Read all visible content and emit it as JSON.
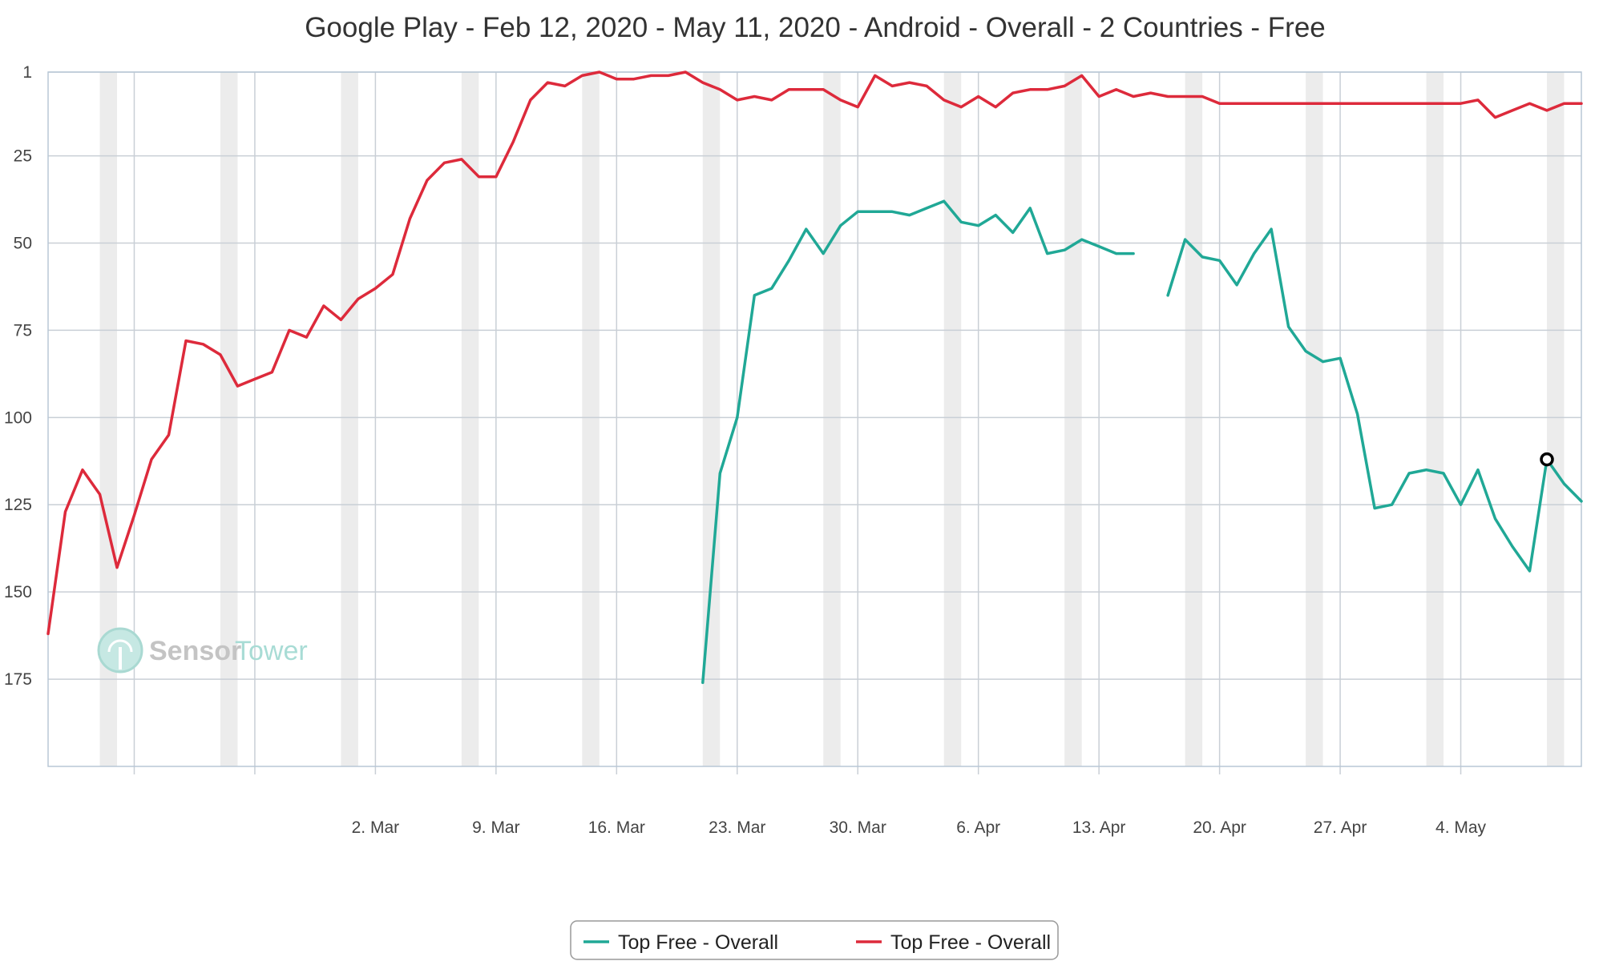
{
  "chart_data": {
    "type": "line",
    "title": "Google Play - Feb 12, 2020 - May 11, 2020 - Android - Overall - 2 Countries - Free",
    "x_start": "2020-02-12",
    "x_end": "2020-05-11",
    "y_axis": {
      "inverted": true,
      "range": [
        1,
        200
      ],
      "ticks": [
        1,
        25,
        50,
        75,
        100,
        125,
        150,
        175
      ]
    },
    "x_ticks": [
      {
        "date": "2020-03-02",
        "label": "2. Mar"
      },
      {
        "date": "2020-03-09",
        "label": "9. Mar"
      },
      {
        "date": "2020-03-16",
        "label": "16. Mar"
      },
      {
        "date": "2020-03-23",
        "label": "23. Mar"
      },
      {
        "date": "2020-03-30",
        "label": "30. Mar"
      },
      {
        "date": "2020-04-06",
        "label": "6. Apr"
      },
      {
        "date": "2020-04-13",
        "label": "13. Apr"
      },
      {
        "date": "2020-04-20",
        "label": "20. Apr"
      },
      {
        "date": "2020-04-27",
        "label": "27. Apr"
      },
      {
        "date": "2020-05-04",
        "label": "4. May"
      }
    ],
    "weekend_bands": [
      [
        "2020-02-15",
        "2020-02-16"
      ],
      [
        "2020-02-22",
        "2020-02-23"
      ],
      [
        "2020-02-29",
        "2020-03-01"
      ],
      [
        "2020-03-07",
        "2020-03-08"
      ],
      [
        "2020-03-14",
        "2020-03-15"
      ],
      [
        "2020-03-21",
        "2020-03-22"
      ],
      [
        "2020-03-28",
        "2020-03-29"
      ],
      [
        "2020-04-04",
        "2020-04-05"
      ],
      [
        "2020-04-11",
        "2020-04-12"
      ],
      [
        "2020-04-18",
        "2020-04-19"
      ],
      [
        "2020-04-25",
        "2020-04-26"
      ],
      [
        "2020-05-02",
        "2020-05-03"
      ],
      [
        "2020-05-09",
        "2020-05-10"
      ]
    ],
    "grid": true,
    "legend": "bottom-center",
    "series": [
      {
        "name": "Top Free - Overall",
        "color": "#20a896",
        "points": [
          [
            "2020-03-21",
            176
          ],
          [
            "2020-03-22",
            116
          ],
          [
            "2020-03-23",
            100
          ],
          [
            "2020-03-24",
            65
          ],
          [
            "2020-03-25",
            63
          ],
          [
            "2020-03-26",
            55
          ],
          [
            "2020-03-27",
            46
          ],
          [
            "2020-03-28",
            53
          ],
          [
            "2020-03-29",
            45
          ],
          [
            "2020-03-30",
            41
          ],
          [
            "2020-03-31",
            41
          ],
          [
            "2020-04-01",
            41
          ],
          [
            "2020-04-02",
            42
          ],
          [
            "2020-04-03",
            40
          ],
          [
            "2020-04-04",
            38
          ],
          [
            "2020-04-05",
            44
          ],
          [
            "2020-04-06",
            45
          ],
          [
            "2020-04-07",
            42
          ],
          [
            "2020-04-08",
            47
          ],
          [
            "2020-04-09",
            40
          ],
          [
            "2020-04-10",
            53
          ],
          [
            "2020-04-11",
            52
          ],
          [
            "2020-04-12",
            49
          ],
          [
            "2020-04-13",
            51
          ],
          [
            "2020-04-14",
            53
          ],
          [
            "2020-04-15",
            53
          ],
          [
            "2020-04-16",
            null
          ],
          [
            "2020-04-17",
            65
          ],
          [
            "2020-04-18",
            49
          ],
          [
            "2020-04-19",
            54
          ],
          [
            "2020-04-20",
            55
          ],
          [
            "2020-04-21",
            62
          ],
          [
            "2020-04-22",
            53
          ],
          [
            "2020-04-23",
            46
          ],
          [
            "2020-04-24",
            74
          ],
          [
            "2020-04-25",
            81
          ],
          [
            "2020-04-26",
            84
          ],
          [
            "2020-04-27",
            83
          ],
          [
            "2020-04-28",
            99
          ],
          [
            "2020-04-29",
            126
          ],
          [
            "2020-04-30",
            125
          ],
          [
            "2020-05-01",
            116
          ],
          [
            "2020-05-02",
            115
          ],
          [
            "2020-05-03",
            116
          ],
          [
            "2020-05-04",
            125
          ],
          [
            "2020-05-05",
            115
          ],
          [
            "2020-05-06",
            129
          ],
          [
            "2020-05-07",
            137
          ],
          [
            "2020-05-08",
            144
          ],
          [
            "2020-05-09",
            112
          ],
          [
            "2020-05-10",
            119
          ],
          [
            "2020-05-11",
            124
          ]
        ]
      },
      {
        "name": "Top Free - Overall",
        "color": "#dd2a3b",
        "points": [
          [
            "2020-02-12",
            162
          ],
          [
            "2020-02-13",
            127
          ],
          [
            "2020-02-14",
            115
          ],
          [
            "2020-02-15",
            122
          ],
          [
            "2020-02-16",
            143
          ],
          [
            "2020-02-17",
            128
          ],
          [
            "2020-02-18",
            112
          ],
          [
            "2020-02-19",
            105
          ],
          [
            "2020-02-20",
            78
          ],
          [
            "2020-02-21",
            79
          ],
          [
            "2020-02-22",
            82
          ],
          [
            "2020-02-23",
            91
          ],
          [
            "2020-02-24",
            89
          ],
          [
            "2020-02-25",
            87
          ],
          [
            "2020-02-26",
            75
          ],
          [
            "2020-02-27",
            77
          ],
          [
            "2020-02-28",
            68
          ],
          [
            "2020-02-29",
            72
          ],
          [
            "2020-03-01",
            66
          ],
          [
            "2020-03-02",
            63
          ],
          [
            "2020-03-03",
            59
          ],
          [
            "2020-03-04",
            43
          ],
          [
            "2020-03-05",
            32
          ],
          [
            "2020-03-06",
            27
          ],
          [
            "2020-03-07",
            26
          ],
          [
            "2020-03-08",
            31
          ],
          [
            "2020-03-09",
            31
          ],
          [
            "2020-03-10",
            21
          ],
          [
            "2020-03-11",
            9
          ],
          [
            "2020-03-12",
            4
          ],
          [
            "2020-03-13",
            5
          ],
          [
            "2020-03-14",
            2
          ],
          [
            "2020-03-15",
            1
          ],
          [
            "2020-03-16",
            3
          ],
          [
            "2020-03-17",
            3
          ],
          [
            "2020-03-18",
            2
          ],
          [
            "2020-03-19",
            2
          ],
          [
            "2020-03-20",
            1
          ],
          [
            "2020-03-21",
            4
          ],
          [
            "2020-03-22",
            6
          ],
          [
            "2020-03-23",
            9
          ],
          [
            "2020-03-24",
            8
          ],
          [
            "2020-03-25",
            9
          ],
          [
            "2020-03-26",
            6
          ],
          [
            "2020-03-27",
            6
          ],
          [
            "2020-03-28",
            6
          ],
          [
            "2020-03-29",
            9
          ],
          [
            "2020-03-30",
            11
          ],
          [
            "2020-03-31",
            2
          ],
          [
            "2020-04-01",
            5
          ],
          [
            "2020-04-02",
            4
          ],
          [
            "2020-04-03",
            5
          ],
          [
            "2020-04-04",
            9
          ],
          [
            "2020-04-05",
            11
          ],
          [
            "2020-04-06",
            8
          ],
          [
            "2020-04-07",
            11
          ],
          [
            "2020-04-08",
            7
          ],
          [
            "2020-04-09",
            6
          ],
          [
            "2020-04-10",
            6
          ],
          [
            "2020-04-11",
            5
          ],
          [
            "2020-04-12",
            2
          ],
          [
            "2020-04-13",
            8
          ],
          [
            "2020-04-14",
            6
          ],
          [
            "2020-04-15",
            8
          ],
          [
            "2020-04-16",
            7
          ],
          [
            "2020-04-17",
            8
          ],
          [
            "2020-04-18",
            8
          ],
          [
            "2020-04-19",
            8
          ],
          [
            "2020-04-20",
            10
          ],
          [
            "2020-04-21",
            10
          ],
          [
            "2020-04-22",
            10
          ],
          [
            "2020-04-23",
            10
          ],
          [
            "2020-04-24",
            10
          ],
          [
            "2020-04-25",
            10
          ],
          [
            "2020-04-26",
            10
          ],
          [
            "2020-04-27",
            10
          ],
          [
            "2020-04-28",
            10
          ],
          [
            "2020-04-29",
            10
          ],
          [
            "2020-04-30",
            10
          ],
          [
            "2020-05-01",
            10
          ],
          [
            "2020-05-02",
            10
          ],
          [
            "2020-05-03",
            10
          ],
          [
            "2020-05-04",
            10
          ],
          [
            "2020-05-05",
            9
          ],
          [
            "2020-05-06",
            14
          ],
          [
            "2020-05-07",
            12
          ],
          [
            "2020-05-08",
            10
          ],
          [
            "2020-05-09",
            12
          ],
          [
            "2020-05-10",
            10
          ],
          [
            "2020-05-11",
            10
          ]
        ]
      }
    ],
    "marker": {
      "series": 0,
      "date": "2020-05-09",
      "value": 112
    }
  },
  "watermark": {
    "part1": "Sensor",
    "part2": "Tower"
  },
  "colors": {
    "grid": "#c9cfd6",
    "weekend": "#ececec",
    "axis": "#b8c7d6"
  }
}
